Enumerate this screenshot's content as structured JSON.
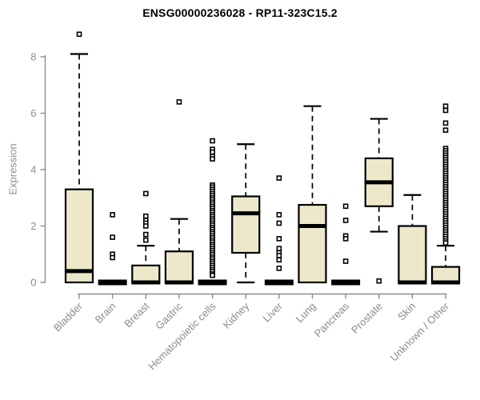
{
  "chart_data": {
    "type": "boxplot",
    "title": "ENSG00000236028 - RP11-323C15.2",
    "ylabel": "Expression",
    "xlabel": "",
    "ylim": [
      0,
      8.8
    ],
    "yticks": [
      0,
      2,
      4,
      6,
      8
    ],
    "grid": false,
    "legend": "none",
    "colors": {
      "box_fill": "#ece8c9",
      "box_stroke": "#000000",
      "median": "#000000",
      "whisker": "#000000",
      "axis": "#8c8c8c",
      "tick_label": "#8c8c8c",
      "title": "#000000",
      "background": "#ffffff"
    },
    "categories": [
      "Bladder",
      "Brain",
      "Breast",
      "Gastric",
      "Hematopoietic cells",
      "Kidney",
      "Liver",
      "Lung",
      "Pancreas",
      "Prostate",
      "Skin",
      "Unknown / Other"
    ],
    "series": [
      {
        "name": "Bladder",
        "q1": 0,
        "median": 0.4,
        "q3": 3.3,
        "whisker_low": 0,
        "whisker_high": 8.1,
        "outliers": [
          8.8
        ]
      },
      {
        "name": "Brain",
        "q1": 0,
        "median": 0,
        "q3": 0,
        "whisker_low": 0,
        "whisker_high": 0,
        "outliers": [
          2.4,
          1.6,
          1.0,
          0.88
        ]
      },
      {
        "name": "Breast",
        "q1": 0,
        "median": 0,
        "q3": 0.6,
        "whisker_low": 0,
        "whisker_high": 1.3,
        "outliers": [
          3.15,
          2.35,
          2.2,
          2.1,
          2.0,
          1.7,
          1.5
        ]
      },
      {
        "name": "Gastric",
        "q1": 0,
        "median": 0,
        "q3": 1.1,
        "whisker_low": 0,
        "whisker_high": 2.25,
        "outliers": [
          6.4
        ]
      },
      {
        "name": "Hematopoietic cells",
        "q1": 0,
        "median": 0,
        "q3": 0,
        "whisker_low": 0,
        "whisker_high": 0,
        "outliers": [
          5.02,
          4.72,
          4.62,
          4.47,
          4.38,
          3.45,
          3.38,
          3.3,
          3.23,
          3.15,
          3.08,
          3.0,
          2.93,
          2.85,
          2.78,
          2.7,
          2.63,
          2.55,
          2.48,
          2.4,
          2.33,
          2.25,
          2.18,
          2.1,
          2.03,
          1.95,
          1.88,
          1.8,
          1.73,
          1.65,
          1.58,
          1.5,
          1.43,
          1.35,
          1.28,
          1.2,
          1.13,
          1.05,
          0.98,
          0.9,
          0.83,
          0.75,
          0.68,
          0.6,
          0.53,
          0.45,
          0.38,
          0.3,
          0.25
        ]
      },
      {
        "name": "Kidney",
        "q1": 1.05,
        "median": 2.45,
        "q3": 3.05,
        "whisker_low": 0,
        "whisker_high": 4.9,
        "outliers": []
      },
      {
        "name": "Liver",
        "q1": 0,
        "median": 0,
        "q3": 0,
        "whisker_low": 0,
        "whisker_high": 0,
        "outliers": [
          3.7,
          2.4,
          2.1,
          1.55,
          1.2,
          1.05,
          0.95,
          0.8,
          0.5
        ]
      },
      {
        "name": "Lung",
        "q1": 0,
        "median": 2.0,
        "q3": 2.75,
        "whisker_low": 0,
        "whisker_high": 6.25,
        "outliers": []
      },
      {
        "name": "Pancreas",
        "q1": 0,
        "median": 0,
        "q3": 0,
        "whisker_low": 0,
        "whisker_high": 0,
        "outliers": [
          2.7,
          2.2,
          1.65,
          1.55,
          0.75
        ]
      },
      {
        "name": "Prostate",
        "q1": 2.7,
        "median": 3.55,
        "q3": 4.4,
        "whisker_low": 1.8,
        "whisker_high": 5.8,
        "outliers": [
          0.05
        ]
      },
      {
        "name": "Skin",
        "q1": 0,
        "median": 0,
        "q3": 2.0,
        "whisker_low": 0,
        "whisker_high": 3.1,
        "outliers": []
      },
      {
        "name": "Unknown / Other",
        "q1": 0,
        "median": 0,
        "q3": 0.55,
        "whisker_low": 0,
        "whisker_high": 1.3,
        "outliers": [
          6.25,
          6.1,
          5.65,
          5.4,
          4.75,
          4.67,
          4.59,
          4.51,
          4.43,
          4.35,
          4.27,
          4.19,
          4.11,
          4.03,
          3.95,
          3.87,
          3.79,
          3.71,
          3.63,
          3.55,
          3.47,
          3.39,
          3.31,
          3.23,
          3.15,
          3.07,
          2.99,
          2.91,
          2.83,
          2.75,
          2.67,
          2.59,
          2.51,
          2.43,
          2.35,
          2.27,
          2.19,
          2.11,
          2.03,
          1.95,
          1.87,
          1.79,
          1.71,
          1.63,
          1.55,
          1.47,
          1.4
        ]
      }
    ]
  }
}
